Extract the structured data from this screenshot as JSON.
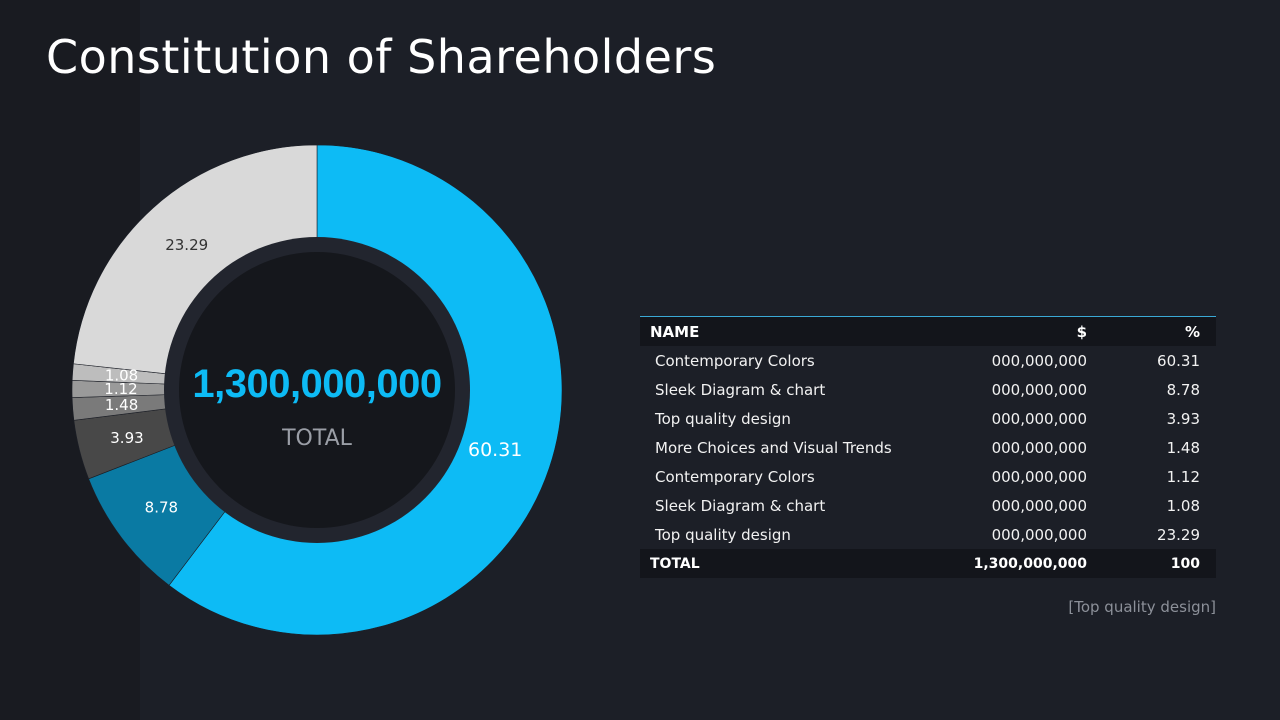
{
  "title": "Constitution of Shareholders",
  "center": {
    "total_value": "1,300,000,000",
    "total_label": "TOTAL"
  },
  "colors": {
    "background": "#1c1f27",
    "accent": "#0dbbf5",
    "accent_dark": "#0a7aa3",
    "inner_circle": "#15171c",
    "inner_ring": "#22252e"
  },
  "chart_data": {
    "type": "pie",
    "variant": "donut",
    "start": "top",
    "direction": "clockwise",
    "slices": [
      {
        "label": "60.31",
        "value": 60.31,
        "color": "#0dbbf5"
      },
      {
        "label": "8.78",
        "value": 8.78,
        "color": "#0a7aa3"
      },
      {
        "label": "3.93",
        "value": 3.93,
        "color": "#484848"
      },
      {
        "label": "1.48",
        "value": 1.48,
        "color": "#7a7a7a"
      },
      {
        "label": "1.12",
        "value": 1.12,
        "color": "#9a9a9a"
      },
      {
        "label": "1.08",
        "value": 1.08,
        "color": "#bdbdbd"
      },
      {
        "label": "23.29",
        "value": 23.29,
        "color": "#d9d9d9"
      }
    ]
  },
  "table": {
    "headers": {
      "name": "NAME",
      "value": "$",
      "percent": "%"
    },
    "rows": [
      {
        "name": "Contemporary Colors",
        "value": "000,000,000",
        "percent": "60.31"
      },
      {
        "name": "Sleek Diagram & chart",
        "value": "000,000,000",
        "percent": "8.78"
      },
      {
        "name": "Top quality design",
        "value": "000,000,000",
        "percent": "3.93"
      },
      {
        "name": "More Choices and Visual Trends",
        "value": "000,000,000",
        "percent": "1.48"
      },
      {
        "name": "Contemporary Colors",
        "value": "000,000,000",
        "percent": "1.12"
      },
      {
        "name": "Sleek Diagram & chart",
        "value": "000,000,000",
        "percent": "1.08"
      },
      {
        "name": "Top quality design",
        "value": "000,000,000",
        "percent": "23.29"
      }
    ],
    "total": {
      "name": "TOTAL",
      "value": "1,300,000,000",
      "percent": "100"
    }
  },
  "footnote": "[Top quality design]"
}
